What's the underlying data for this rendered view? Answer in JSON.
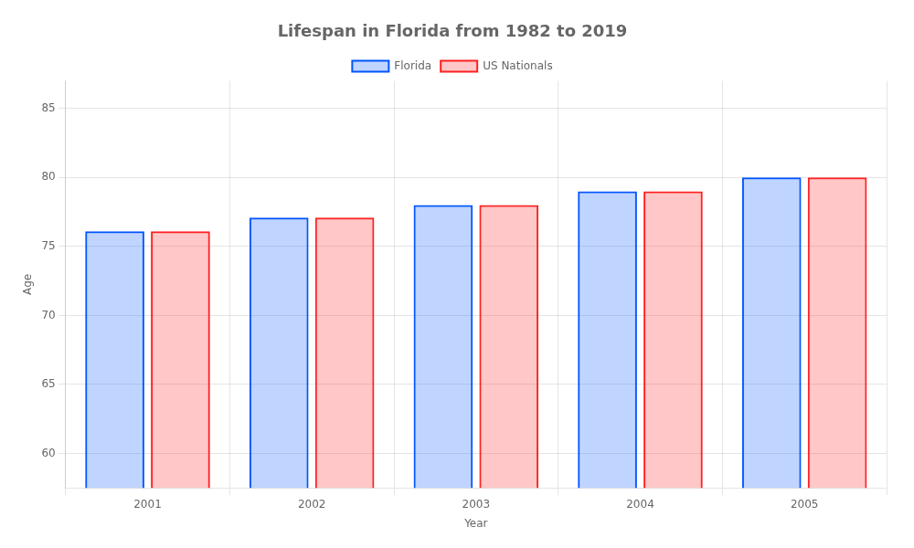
{
  "chart_data": {
    "type": "bar",
    "title": "Lifespan in Florida from 1982 to 2019",
    "x_label": "Year",
    "y_label": "Age",
    "categories": [
      "2001",
      "2002",
      "2003",
      "2004",
      "2005"
    ],
    "series": [
      {
        "name": "Florida",
        "color": "#0055ff",
        "values": [
          76.1,
          77.1,
          78.0,
          79.0,
          80.0
        ]
      },
      {
        "name": "US Nationals",
        "color": "#ff2020",
        "values": [
          76.1,
          77.1,
          78.0,
          79.0,
          80.0
        ]
      }
    ],
    "ylim": [
      57.5,
      87
    ],
    "yticks": [
      60,
      65,
      70,
      75,
      80,
      85
    ],
    "grid": true,
    "legend": "top"
  }
}
